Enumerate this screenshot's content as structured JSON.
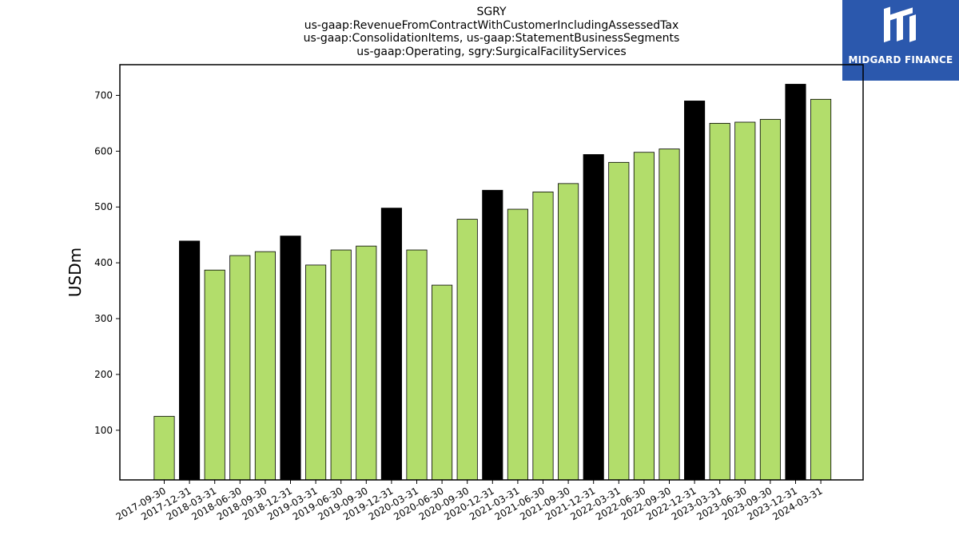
{
  "chart_data": {
    "type": "bar",
    "title": "SGRY",
    "subtitle_lines": [
      "us-gaap:RevenueFromContractWithCustomerIncludingAssessedTax",
      "us-gaap:ConsolidationItems, us-gaap:StatementBusinessSegments",
      "us-gaap:Operating, sgry:SurgicalFacilityServices"
    ],
    "ylabel": "USDm",
    "xlabel": "",
    "ylim": [
      11,
      755
    ],
    "yticks": [
      100,
      200,
      300,
      400,
      500,
      600,
      700
    ],
    "grid": false,
    "categories": [
      "2017-09-30",
      "2017-12-31",
      "2018-03-31",
      "2018-06-30",
      "2018-09-30",
      "2018-12-31",
      "2019-03-31",
      "2019-06-30",
      "2019-09-30",
      "2019-12-31",
      "2020-03-31",
      "2020-06-30",
      "2020-09-30",
      "2020-12-31",
      "2021-03-31",
      "2021-06-30",
      "2021-09-30",
      "2021-12-31",
      "2022-03-31",
      "2022-06-30",
      "2022-09-30",
      "2022-12-31",
      "2023-03-31",
      "2023-06-30",
      "2023-09-30",
      "2023-12-31",
      "2024-03-31"
    ],
    "values": [
      125,
      439,
      387,
      413,
      420,
      448,
      396,
      423,
      430,
      498,
      423,
      360,
      478,
      530,
      496,
      527,
      542,
      594,
      580,
      598,
      604,
      690,
      650,
      652,
      657,
      720,
      693
    ],
    "bar_colors": [
      "#b2dd6b",
      "#000000",
      "#b2dd6b",
      "#b2dd6b",
      "#b2dd6b",
      "#000000",
      "#b2dd6b",
      "#b2dd6b",
      "#b2dd6b",
      "#000000",
      "#b2dd6b",
      "#b2dd6b",
      "#b2dd6b",
      "#000000",
      "#b2dd6b",
      "#b2dd6b",
      "#b2dd6b",
      "#000000",
      "#b2dd6b",
      "#b2dd6b",
      "#b2dd6b",
      "#000000",
      "#b2dd6b",
      "#b2dd6b",
      "#b2dd6b",
      "#000000",
      "#b2dd6b"
    ]
  },
  "logo": {
    "text": "MIDGARD FINANCE",
    "background": "#2b58ad"
  }
}
